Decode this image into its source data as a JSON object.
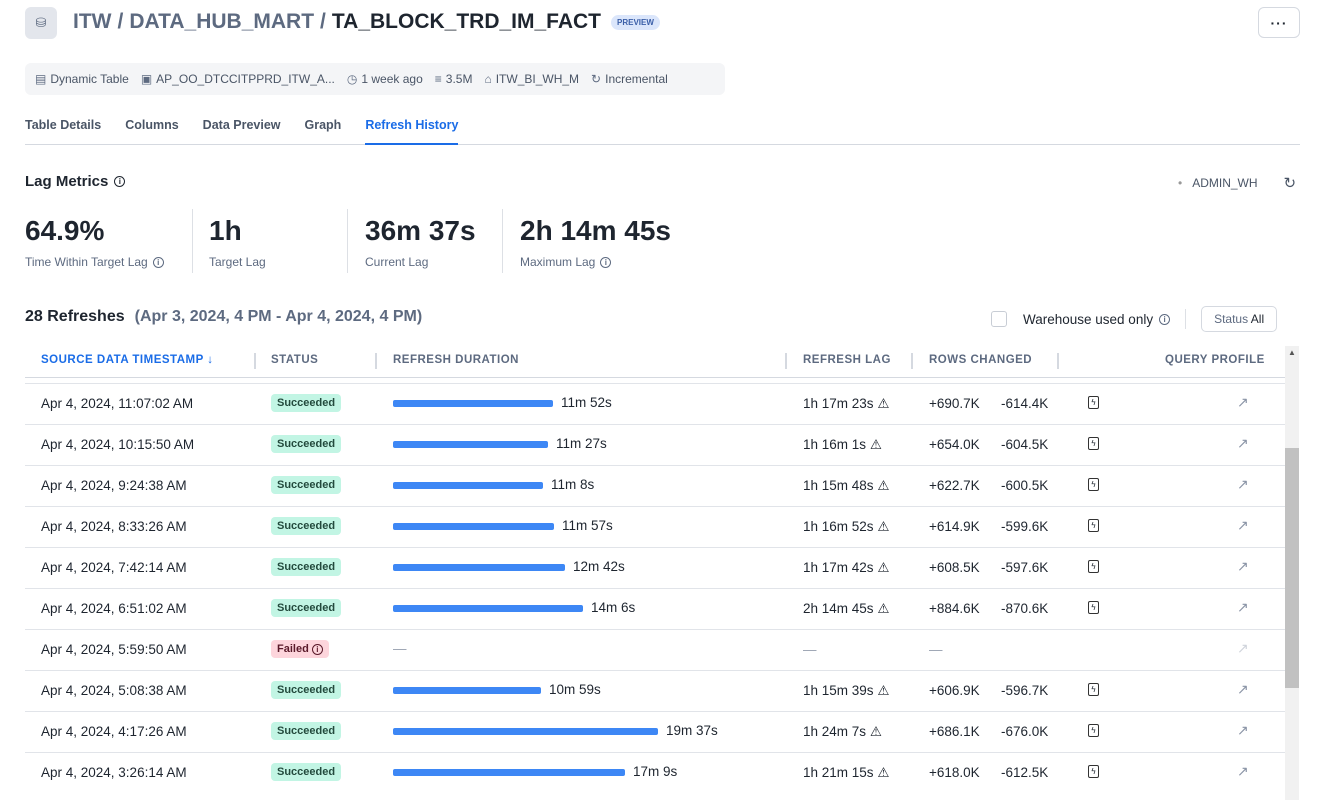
{
  "header": {
    "breadcrumb": [
      "ITW",
      "DATA_HUB_MART",
      "TA_BLOCK_TRD_IM_FACT"
    ],
    "badge": "PREVIEW",
    "more": "···"
  },
  "meta": [
    {
      "icon": "dynamic-table-icon",
      "label": "Dynamic Table"
    },
    {
      "icon": "owner-icon",
      "label": "AP_OO_DTCCITPPRD_ITW_A..."
    },
    {
      "icon": "clock-icon",
      "label": "1 week ago"
    },
    {
      "icon": "rows-icon",
      "label": "3.5M"
    },
    {
      "icon": "warehouse-icon",
      "label": "ITW_BI_WH_M"
    },
    {
      "icon": "refresh-mode-icon",
      "label": "Incremental"
    }
  ],
  "tabs": [
    {
      "label": "Table Details"
    },
    {
      "label": "Columns"
    },
    {
      "label": "Data Preview"
    },
    {
      "label": "Graph"
    },
    {
      "label": "Refresh History",
      "active": true
    }
  ],
  "lag": {
    "title": "Lag Metrics",
    "warehouse": "ADMIN_WH",
    "metrics": [
      {
        "value": "64.9%",
        "label": "Time Within Target Lag",
        "info": true
      },
      {
        "value": "1h",
        "label": "Target Lag"
      },
      {
        "value": "36m 37s",
        "label": "Current Lag"
      },
      {
        "value": "2h 14m 45s",
        "label": "Maximum Lag",
        "info": true
      }
    ]
  },
  "refreshes": {
    "count": "28 Refreshes",
    "range": "(Apr 3, 2024, 4 PM - Apr 4, 2024, 4 PM)",
    "filter_label": "Warehouse used only",
    "status_label": "Status",
    "status_value": "All"
  },
  "columns": {
    "ts": "SOURCE DATA TIMESTAMP",
    "status": "STATUS",
    "duration": "REFRESH DURATION",
    "lag": "REFRESH LAG",
    "rows": "ROWS CHANGED",
    "qp": "QUERY PROFILE"
  },
  "colors": {
    "accent": "#1a6ce7",
    "bar": "#3d87f5",
    "succeeded_bg": "#c2f5e4",
    "failed_bg": "#fdd5dc"
  },
  "rows": [
    {
      "ts": "Apr 4, 2024, 11:07:02 AM",
      "status": "Succeeded",
      "duration": "11m 52s",
      "lag": "1h 17m 23s",
      "added": "+690.7K",
      "removed": "-614.4K"
    },
    {
      "ts": "Apr 4, 2024, 10:15:50 AM",
      "status": "Succeeded",
      "duration": "11m 27s",
      "lag": "1h 16m 1s",
      "added": "+654.0K",
      "removed": "-604.5K"
    },
    {
      "ts": "Apr 4, 2024, 9:24:38 AM",
      "status": "Succeeded",
      "duration": "11m 8s",
      "lag": "1h 15m 48s",
      "added": "+622.7K",
      "removed": "-600.5K"
    },
    {
      "ts": "Apr 4, 2024, 8:33:26 AM",
      "status": "Succeeded",
      "duration": "11m 57s",
      "lag": "1h 16m 52s",
      "added": "+614.9K",
      "removed": "-599.6K"
    },
    {
      "ts": "Apr 4, 2024, 7:42:14 AM",
      "status": "Succeeded",
      "duration": "12m 42s",
      "lag": "1h 17m 42s",
      "added": "+608.5K",
      "removed": "-597.6K"
    },
    {
      "ts": "Apr 4, 2024, 6:51:02 AM",
      "status": "Succeeded",
      "duration": "14m 6s",
      "lag": "2h 14m 45s",
      "added": "+884.6K",
      "removed": "-870.6K"
    },
    {
      "ts": "Apr 4, 2024, 5:59:50 AM",
      "status": "Failed",
      "duration": "—",
      "lag": "—",
      "added": "—",
      "removed": ""
    },
    {
      "ts": "Apr 4, 2024, 5:08:38 AM",
      "status": "Succeeded",
      "duration": "10m 59s",
      "lag": "1h 15m 39s",
      "added": "+606.9K",
      "removed": "-596.7K"
    },
    {
      "ts": "Apr 4, 2024, 4:17:26 AM",
      "status": "Succeeded",
      "duration": "19m 37s",
      "lag": "1h 24m 7s",
      "added": "+686.1K",
      "removed": "-676.0K"
    },
    {
      "ts": "Apr 4, 2024, 3:26:14 AM",
      "status": "Succeeded",
      "duration": "17m 9s",
      "lag": "1h 21m 15s",
      "added": "+618.0K",
      "removed": "-612.5K"
    }
  ]
}
